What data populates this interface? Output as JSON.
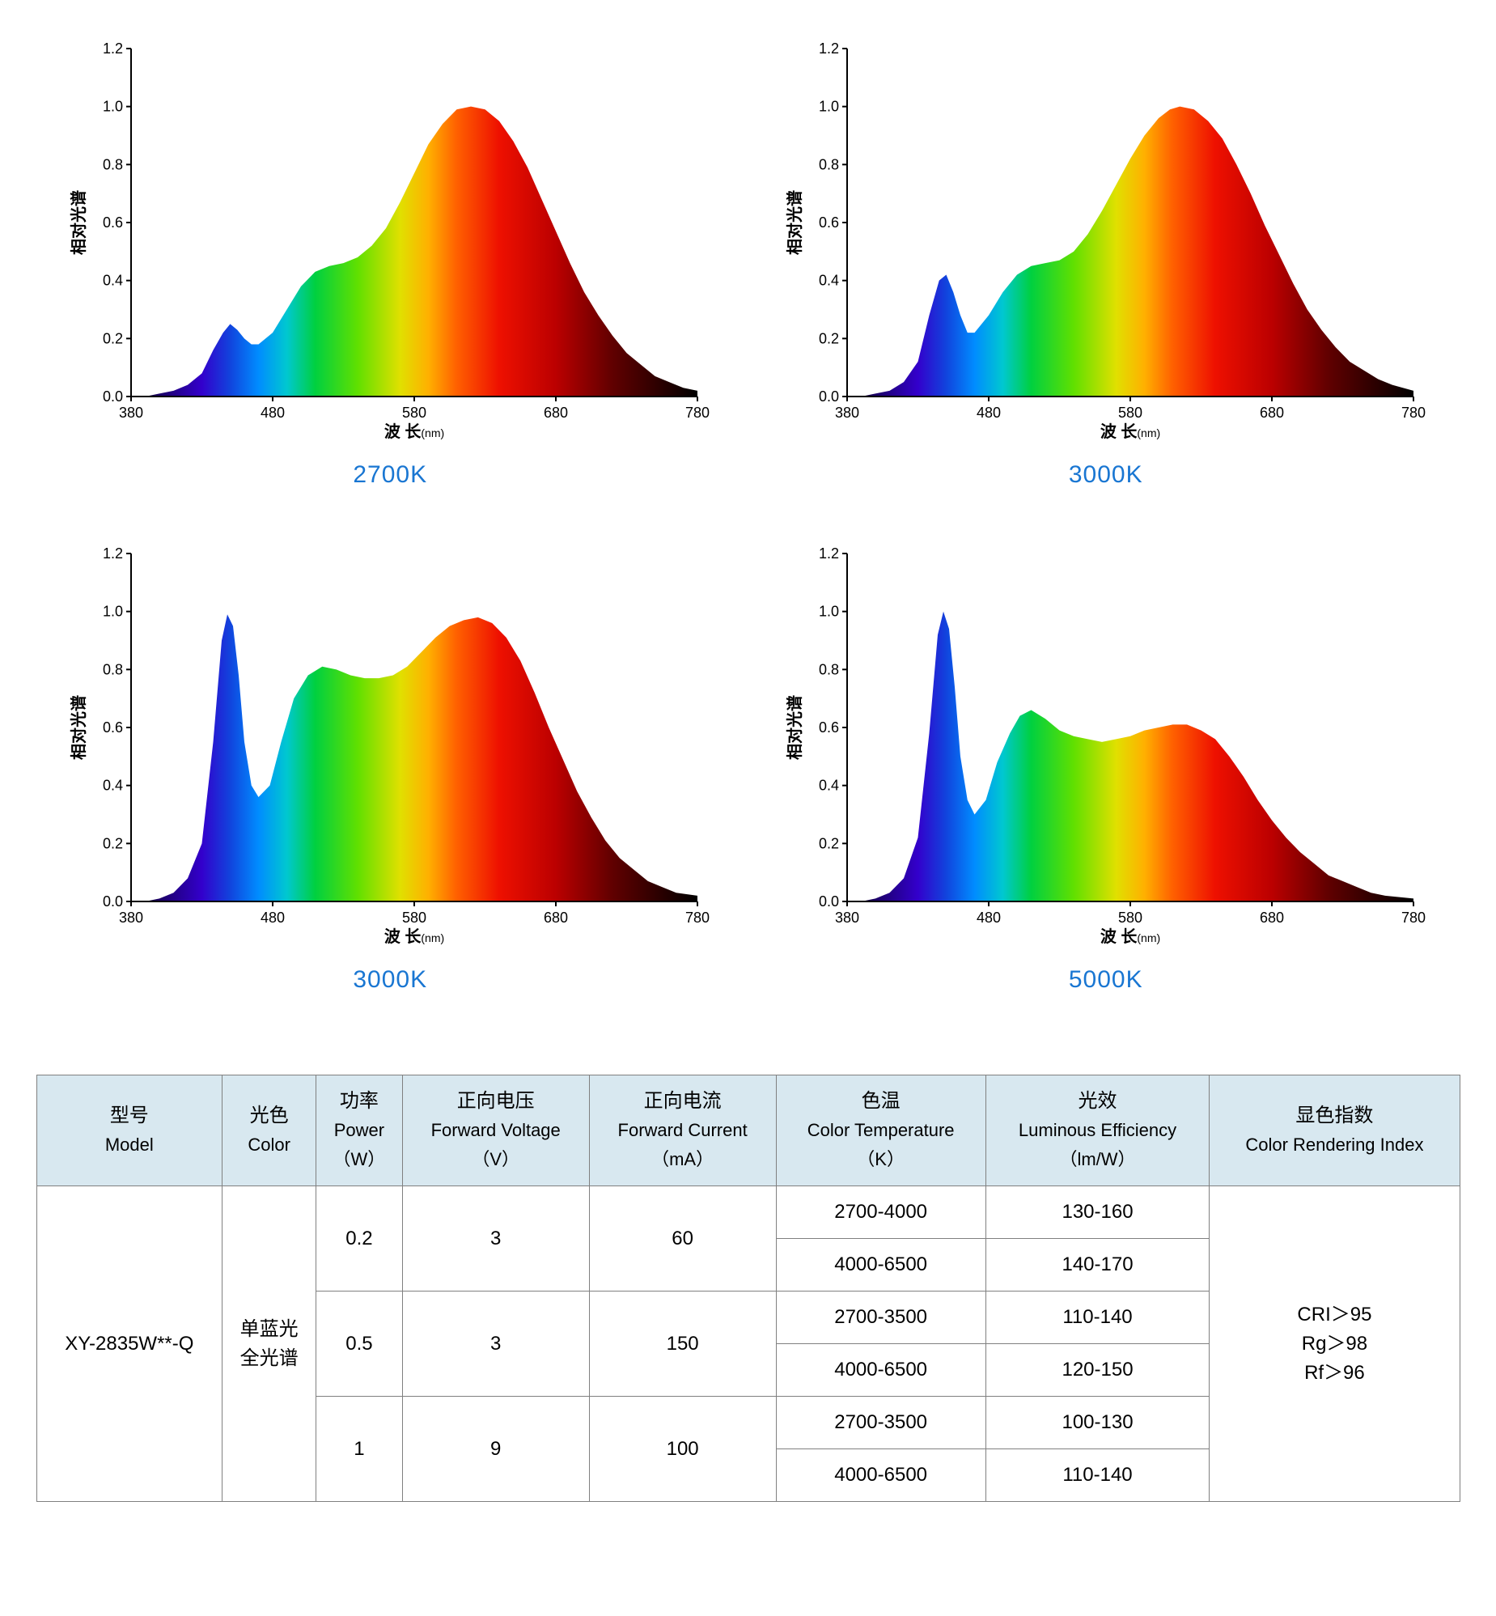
{
  "global": {
    "y_label": "相对光谱",
    "x_label": "波 长",
    "x_unit": "(nm)",
    "xlim": [
      380,
      780
    ],
    "ylim": [
      0.0,
      1.2
    ],
    "x_ticks": [
      380,
      480,
      580,
      680,
      780
    ],
    "y_ticks": [
      0.0,
      0.2,
      0.4,
      0.6,
      0.8,
      1.0,
      1.2
    ],
    "y_tick_labels": [
      "0.0",
      "0.2",
      "0.4",
      "0.6",
      "0.8",
      "1.0",
      "1.2"
    ],
    "tick_len": 6,
    "axis_color": "#000000",
    "background": "#ffffff",
    "title_color": "#1976d2",
    "title_fontsize": 30,
    "tick_fontsize": 18,
    "axis_label_fontsize": 20,
    "gradient_stops": [
      {
        "x": 380,
        "c": "#000000"
      },
      {
        "x": 400,
        "c": "#1b0066"
      },
      {
        "x": 430,
        "c": "#3300cc"
      },
      {
        "x": 450,
        "c": "#1144dd"
      },
      {
        "x": 470,
        "c": "#008cff"
      },
      {
        "x": 490,
        "c": "#00c8d0"
      },
      {
        "x": 510,
        "c": "#00d040"
      },
      {
        "x": 540,
        "c": "#60e000"
      },
      {
        "x": 570,
        "c": "#e0e000"
      },
      {
        "x": 590,
        "c": "#ffb000"
      },
      {
        "x": 610,
        "c": "#ff6000"
      },
      {
        "x": 640,
        "c": "#ee1000"
      },
      {
        "x": 680,
        "c": "#bb0000"
      },
      {
        "x": 720,
        "c": "#600000"
      },
      {
        "x": 780,
        "c": "#000000"
      }
    ]
  },
  "charts": [
    {
      "title": "2700K",
      "data": [
        [
          380,
          0.0
        ],
        [
          390,
          0.0
        ],
        [
          400,
          0.01
        ],
        [
          410,
          0.02
        ],
        [
          420,
          0.04
        ],
        [
          430,
          0.08
        ],
        [
          438,
          0.16
        ],
        [
          445,
          0.22
        ],
        [
          450,
          0.25
        ],
        [
          455,
          0.23
        ],
        [
          460,
          0.2
        ],
        [
          465,
          0.18
        ],
        [
          470,
          0.18
        ],
        [
          480,
          0.22
        ],
        [
          490,
          0.3
        ],
        [
          500,
          0.38
        ],
        [
          510,
          0.43
        ],
        [
          520,
          0.45
        ],
        [
          530,
          0.46
        ],
        [
          540,
          0.48
        ],
        [
          550,
          0.52
        ],
        [
          560,
          0.58
        ],
        [
          570,
          0.67
        ],
        [
          580,
          0.77
        ],
        [
          590,
          0.87
        ],
        [
          600,
          0.94
        ],
        [
          610,
          0.99
        ],
        [
          620,
          1.0
        ],
        [
          630,
          0.99
        ],
        [
          640,
          0.95
        ],
        [
          650,
          0.88
        ],
        [
          660,
          0.79
        ],
        [
          670,
          0.68
        ],
        [
          680,
          0.57
        ],
        [
          690,
          0.46
        ],
        [
          700,
          0.36
        ],
        [
          710,
          0.28
        ],
        [
          720,
          0.21
        ],
        [
          730,
          0.15
        ],
        [
          740,
          0.11
        ],
        [
          750,
          0.07
        ],
        [
          760,
          0.05
        ],
        [
          770,
          0.03
        ],
        [
          780,
          0.02
        ]
      ]
    },
    {
      "title": "3000K",
      "data": [
        [
          380,
          0.0
        ],
        [
          390,
          0.0
        ],
        [
          400,
          0.01
        ],
        [
          410,
          0.02
        ],
        [
          420,
          0.05
        ],
        [
          430,
          0.12
        ],
        [
          438,
          0.28
        ],
        [
          445,
          0.4
        ],
        [
          450,
          0.42
        ],
        [
          455,
          0.36
        ],
        [
          460,
          0.28
        ],
        [
          465,
          0.22
        ],
        [
          470,
          0.22
        ],
        [
          480,
          0.28
        ],
        [
          490,
          0.36
        ],
        [
          500,
          0.42
        ],
        [
          510,
          0.45
        ],
        [
          520,
          0.46
        ],
        [
          530,
          0.47
        ],
        [
          540,
          0.5
        ],
        [
          550,
          0.56
        ],
        [
          560,
          0.64
        ],
        [
          570,
          0.73
        ],
        [
          580,
          0.82
        ],
        [
          590,
          0.9
        ],
        [
          600,
          0.96
        ],
        [
          608,
          0.99
        ],
        [
          615,
          1.0
        ],
        [
          625,
          0.99
        ],
        [
          635,
          0.95
        ],
        [
          645,
          0.89
        ],
        [
          655,
          0.8
        ],
        [
          665,
          0.7
        ],
        [
          675,
          0.59
        ],
        [
          685,
          0.49
        ],
        [
          695,
          0.39
        ],
        [
          705,
          0.3
        ],
        [
          715,
          0.23
        ],
        [
          725,
          0.17
        ],
        [
          735,
          0.12
        ],
        [
          745,
          0.09
        ],
        [
          755,
          0.06
        ],
        [
          765,
          0.04
        ],
        [
          780,
          0.02
        ]
      ]
    },
    {
      "title": "3000K",
      "data": [
        [
          380,
          0.0
        ],
        [
          390,
          0.0
        ],
        [
          400,
          0.01
        ],
        [
          410,
          0.03
        ],
        [
          420,
          0.08
        ],
        [
          430,
          0.2
        ],
        [
          438,
          0.55
        ],
        [
          444,
          0.9
        ],
        [
          448,
          0.99
        ],
        [
          452,
          0.95
        ],
        [
          456,
          0.78
        ],
        [
          460,
          0.55
        ],
        [
          465,
          0.4
        ],
        [
          470,
          0.36
        ],
        [
          478,
          0.4
        ],
        [
          486,
          0.55
        ],
        [
          495,
          0.7
        ],
        [
          505,
          0.78
        ],
        [
          515,
          0.81
        ],
        [
          525,
          0.8
        ],
        [
          535,
          0.78
        ],
        [
          545,
          0.77
        ],
        [
          555,
          0.77
        ],
        [
          565,
          0.78
        ],
        [
          575,
          0.81
        ],
        [
          585,
          0.86
        ],
        [
          595,
          0.91
        ],
        [
          605,
          0.95
        ],
        [
          615,
          0.97
        ],
        [
          625,
          0.98
        ],
        [
          635,
          0.96
        ],
        [
          645,
          0.91
        ],
        [
          655,
          0.83
        ],
        [
          665,
          0.72
        ],
        [
          675,
          0.6
        ],
        [
          685,
          0.49
        ],
        [
          695,
          0.38
        ],
        [
          705,
          0.29
        ],
        [
          715,
          0.21
        ],
        [
          725,
          0.15
        ],
        [
          735,
          0.11
        ],
        [
          745,
          0.07
        ],
        [
          755,
          0.05
        ],
        [
          765,
          0.03
        ],
        [
          780,
          0.02
        ]
      ]
    },
    {
      "title": "5000K",
      "data": [
        [
          380,
          0.0
        ],
        [
          390,
          0.0
        ],
        [
          400,
          0.01
        ],
        [
          410,
          0.03
        ],
        [
          420,
          0.08
        ],
        [
          430,
          0.22
        ],
        [
          438,
          0.58
        ],
        [
          444,
          0.92
        ],
        [
          448,
          1.0
        ],
        [
          452,
          0.94
        ],
        [
          456,
          0.74
        ],
        [
          460,
          0.5
        ],
        [
          465,
          0.35
        ],
        [
          470,
          0.3
        ],
        [
          478,
          0.35
        ],
        [
          486,
          0.48
        ],
        [
          495,
          0.58
        ],
        [
          502,
          0.64
        ],
        [
          510,
          0.66
        ],
        [
          520,
          0.63
        ],
        [
          530,
          0.59
        ],
        [
          540,
          0.57
        ],
        [
          550,
          0.56
        ],
        [
          560,
          0.55
        ],
        [
          570,
          0.56
        ],
        [
          580,
          0.57
        ],
        [
          590,
          0.59
        ],
        [
          600,
          0.6
        ],
        [
          610,
          0.61
        ],
        [
          620,
          0.61
        ],
        [
          630,
          0.59
        ],
        [
          640,
          0.56
        ],
        [
          650,
          0.5
        ],
        [
          660,
          0.43
        ],
        [
          670,
          0.35
        ],
        [
          680,
          0.28
        ],
        [
          690,
          0.22
        ],
        [
          700,
          0.17
        ],
        [
          710,
          0.13
        ],
        [
          720,
          0.09
        ],
        [
          730,
          0.07
        ],
        [
          740,
          0.05
        ],
        [
          750,
          0.03
        ],
        [
          760,
          0.02
        ],
        [
          780,
          0.01
        ]
      ]
    }
  ],
  "table": {
    "headers": [
      {
        "zh": "型号",
        "en": "Model"
      },
      {
        "zh": "光色",
        "en": "Color"
      },
      {
        "zh": "功率",
        "en": "Power",
        "unit": "（W）"
      },
      {
        "zh": "正向电压",
        "en": "Forward Voltage",
        "unit": "（V）"
      },
      {
        "zh": "正向电流",
        "en": "Forward Current",
        "unit": "（mA）"
      },
      {
        "zh": "色温",
        "en": "Color Temperature",
        "unit": "（K）"
      },
      {
        "zh": "光效",
        "en": "Luminous Efficiency",
        "unit": "（lm/W）"
      },
      {
        "zh": "显色指数",
        "en": "Color Rendering Index"
      }
    ],
    "body": {
      "model": "XY-2835W**-Q",
      "color_line1": "单蓝光",
      "color_line2": "全光谱",
      "cri_line1": "CRI＞95",
      "cri_line2": "Rg＞98",
      "cri_line3": "Rf＞96",
      "groups": [
        {
          "power": "0.2",
          "fv": "3",
          "fc": "60",
          "rows": [
            {
              "ct": "2700-4000",
              "le": "130-160"
            },
            {
              "ct": "4000-6500",
              "le": "140-170"
            }
          ]
        },
        {
          "power": "0.5",
          "fv": "3",
          "fc": "150",
          "rows": [
            {
              "ct": "2700-3500",
              "le": "110-140"
            },
            {
              "ct": "4000-6500",
              "le": "120-150"
            }
          ]
        },
        {
          "power": "1",
          "fv": "9",
          "fc": "100",
          "rows": [
            {
              "ct": "2700-3500",
              "le": "100-130"
            },
            {
              "ct": "4000-6500",
              "le": "110-140"
            }
          ]
        }
      ]
    },
    "header_bg": "#d8e8f0",
    "border_color": "#808080",
    "fontsize": 24
  }
}
